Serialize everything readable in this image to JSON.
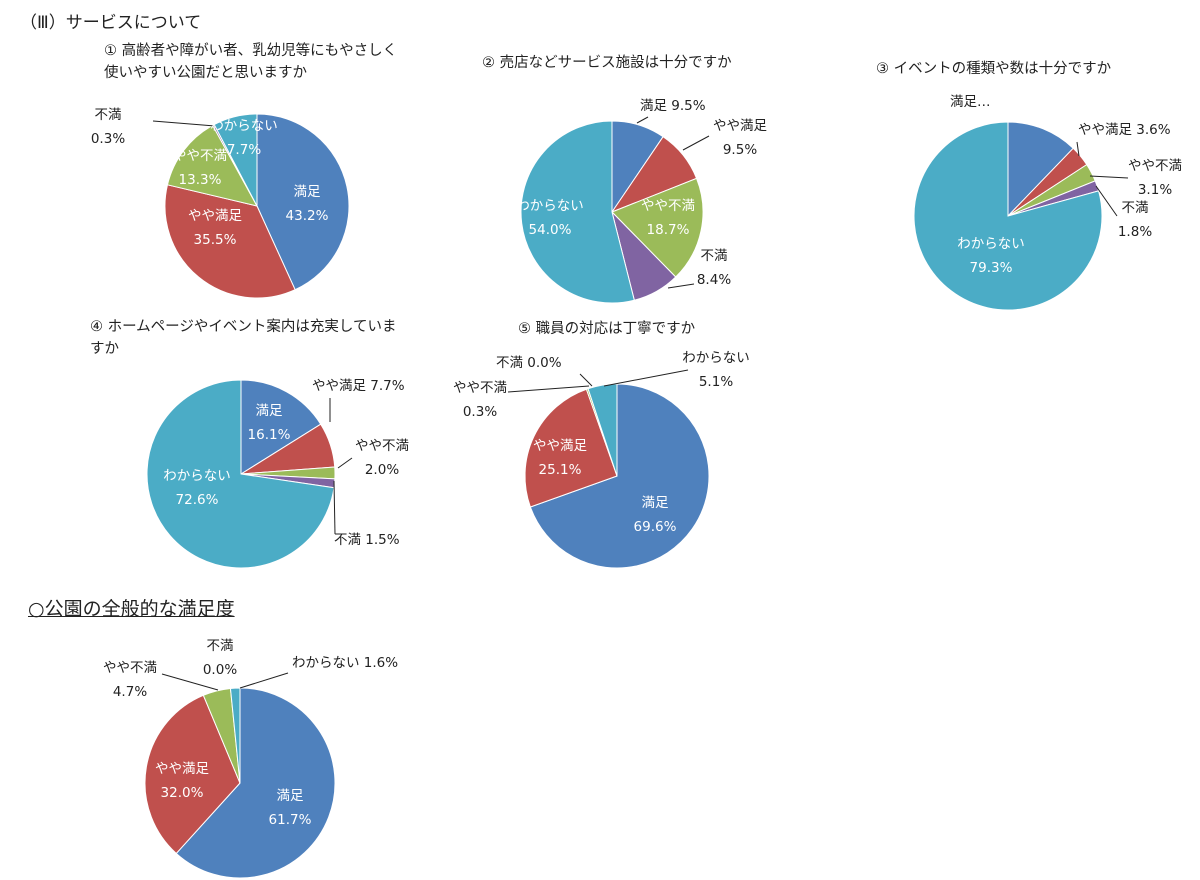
{
  "section_title": "（Ⅲ）サービスについて",
  "overall_title": "○公園の全般的な満足度",
  "colors": {
    "manzoku": "#4f81bd",
    "yaya_manzoku": "#c0504d",
    "yaya_fuman": "#9bbb59",
    "fuman": "#8064a2",
    "wakaranai": "#4bacc6"
  },
  "chart_data": [
    {
      "type": "pie",
      "title": "① 高齢者や障がい者、乳幼児等にもやさしく\n使いやすい公園だと思いますか",
      "slices": [
        {
          "name": "満足",
          "value": 43.2,
          "label": "43.2%"
        },
        {
          "name": "やや満足",
          "value": 35.5,
          "label": "35.5%"
        },
        {
          "name": "やや不満",
          "value": 13.3,
          "label": "13.3%"
        },
        {
          "name": "不満",
          "value": 0.3,
          "label": "0.3%"
        },
        {
          "name": "わからない",
          "value": 7.7,
          "label": "7.7%"
        }
      ]
    },
    {
      "type": "pie",
      "title": "② 売店などサービス施設は十分ですか",
      "slices": [
        {
          "name": "満足",
          "value": 9.5,
          "label": "9.5%"
        },
        {
          "name": "やや満足",
          "value": 9.5,
          "label": "9.5%"
        },
        {
          "name": "やや不満",
          "value": 18.7,
          "label": "18.7%"
        },
        {
          "name": "不満",
          "value": 8.4,
          "label": "8.4%"
        },
        {
          "name": "わからない",
          "value": 54.0,
          "label": "54.0%"
        }
      ]
    },
    {
      "type": "pie",
      "title": "③ イベントの種類や数は十分ですか",
      "slices": [
        {
          "name": "満足…",
          "value": 12.2,
          "label": ""
        },
        {
          "name": "やや満足",
          "value": 3.6,
          "label": "3.6%"
        },
        {
          "name": "やや不満",
          "value": 3.1,
          "label": "3.1%"
        },
        {
          "name": "不満",
          "value": 1.8,
          "label": "1.8%"
        },
        {
          "name": "わからない",
          "value": 79.3,
          "label": "79.3%"
        }
      ]
    },
    {
      "type": "pie",
      "title": "④ ホームページやイベント案内は充実していま\nすか",
      "slices": [
        {
          "name": "満足",
          "value": 16.1,
          "label": "16.1%"
        },
        {
          "name": "やや満足",
          "value": 7.7,
          "label": "7.7%"
        },
        {
          "name": "やや不満",
          "value": 2.0,
          "label": "2.0%"
        },
        {
          "name": "不満",
          "value": 1.5,
          "label": "1.5%"
        },
        {
          "name": "わからない",
          "value": 72.6,
          "label": "72.6%"
        }
      ]
    },
    {
      "type": "pie",
      "title": "⑤ 職員の対応は丁寧ですか",
      "slices": [
        {
          "name": "満足",
          "value": 69.6,
          "label": "69.6%"
        },
        {
          "name": "やや満足",
          "value": 25.1,
          "label": "25.1%"
        },
        {
          "name": "やや不満",
          "value": 0.3,
          "label": "0.3%"
        },
        {
          "name": "不満",
          "value": 0.0,
          "label": "0.0%"
        },
        {
          "name": "わからない",
          "value": 5.1,
          "label": "5.1%"
        }
      ]
    },
    {
      "type": "pie",
      "title": "",
      "slices": [
        {
          "name": "満足",
          "value": 61.7,
          "label": "61.7%"
        },
        {
          "name": "やや満足",
          "value": 32.0,
          "label": "32.0%"
        },
        {
          "name": "やや不満",
          "value": 4.7,
          "label": "4.7%"
        },
        {
          "name": "不満",
          "value": 0.0,
          "label": "0.0%"
        },
        {
          "name": "わからない",
          "value": 1.6,
          "label": "1.6%"
        }
      ]
    }
  ]
}
